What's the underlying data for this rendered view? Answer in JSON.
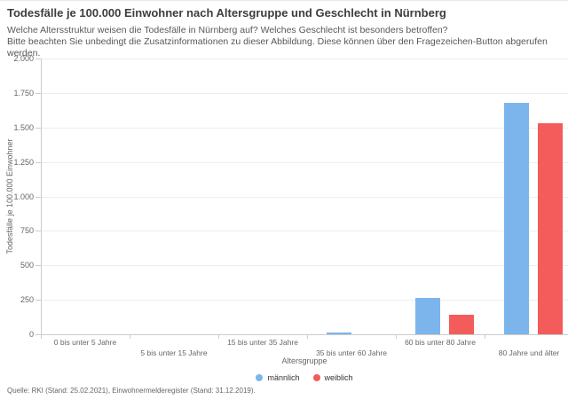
{
  "header": {
    "title": "Todesfälle je 100.000 Einwohner nach Altersgruppe und Geschlecht in Nürnberg",
    "subtitle_line1": "Welche Altersstruktur weisen die Todesfälle in Nürnberg auf? Welches Geschlecht ist besonders betroffen?",
    "subtitle_line2": "Bitte beachten Sie unbedingt die Zusatzinformationen zu dieser Abbildung. Diese können über den Fragezeichen-Button abgerufen werden."
  },
  "footer": {
    "source": "Quelle: RKI (Stand: 25.02.2021), Einwohnermelderegister (Stand: 31.12.2019)."
  },
  "chart_data": {
    "type": "bar",
    "title": "Todesfälle je 100.000 Einwohner nach Altersgruppe und Geschlecht in Nürnberg",
    "categories": [
      "0 bis unter 5 Jahre",
      "5 bis unter 15 Jahre",
      "15 bis unter 35 Jahre",
      "35 bis unter 60 Jahre",
      "60 bis unter 80 Jahre",
      "80 Jahre und älter"
    ],
    "series": [
      {
        "name": "männlich",
        "color": "#7cb5ec",
        "values": [
          0,
          0,
          1,
          13,
          265,
          1680
        ]
      },
      {
        "name": "weiblich",
        "color": "#f45b5b",
        "values": [
          0,
          0,
          1,
          2,
          140,
          1530
        ]
      }
    ],
    "xlabel": "Altersgruppe",
    "ylabel": "Todesfälle je 100.000 Einwohner",
    "ylim": [
      0,
      2000
    ],
    "ytick_step": 250,
    "ytick_labels": [
      "0",
      "250",
      "500",
      "750",
      "1.000",
      "1.250",
      "1.500",
      "1.750",
      "2.000"
    ],
    "grid": true,
    "legend_position": "bottom",
    "colors": {
      "gridline": "#ededed",
      "axis": "#cccccc",
      "text": "#666666"
    }
  }
}
